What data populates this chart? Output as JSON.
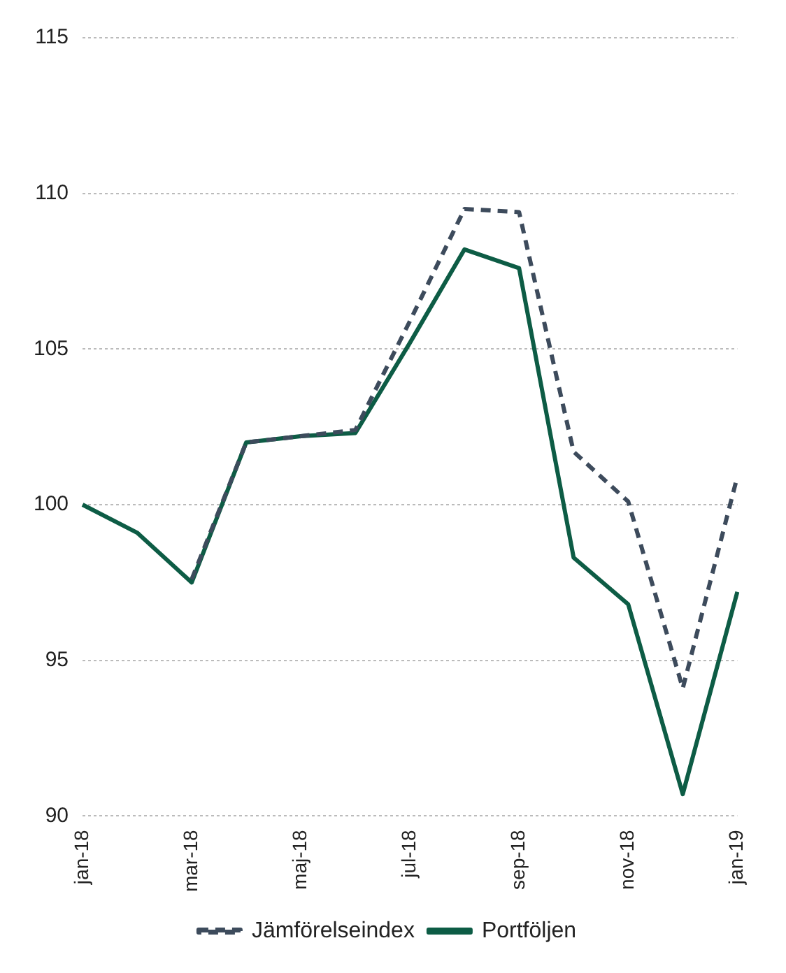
{
  "chart_data": {
    "type": "line",
    "categories": [
      "jan-18",
      null,
      "mar-18",
      null,
      "maj-18",
      null,
      "jul-18",
      null,
      "sep-18",
      null,
      "nov-18",
      null,
      "jan-19"
    ],
    "series": [
      {
        "name": "Jämförelseindex",
        "color": "#3d4b5c",
        "line_style": "dashed",
        "values": [
          null,
          null,
          97.6,
          102.0,
          102.2,
          102.4,
          105.9,
          109.5,
          109.4,
          101.7,
          100.1,
          94.1,
          100.9
        ]
      },
      {
        "name": "Portföljen",
        "color": "#0d5c45",
        "line_style": "solid",
        "values": [
          100.0,
          99.1,
          97.5,
          102.0,
          102.2,
          102.3,
          105.2,
          108.2,
          107.6,
          98.3,
          96.8,
          90.7,
          97.2
        ]
      }
    ],
    "ylim": [
      90,
      115
    ],
    "yticks": [
      90,
      95,
      100,
      105,
      110,
      115
    ],
    "grid": "y",
    "legend": "bottom",
    "marker": "none"
  }
}
